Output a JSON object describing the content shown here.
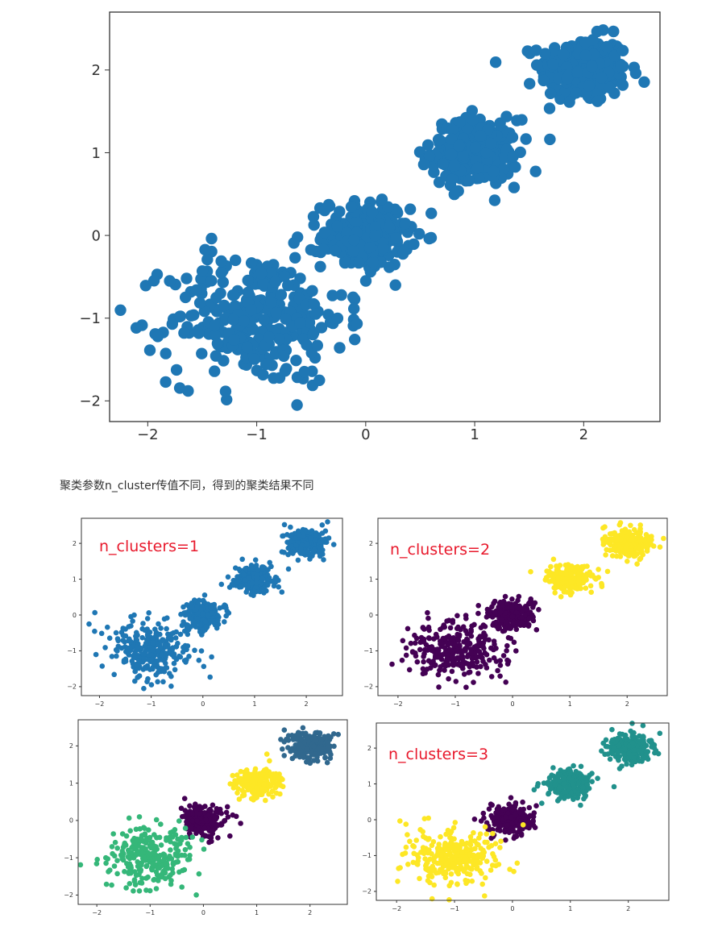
{
  "caption": "聚类参数n_cluster传值不同，得到的聚类结果不同",
  "annotations": [
    "n_clusters=1",
    "n_clusters=2",
    "n_clusters=3"
  ],
  "chart_data": [
    {
      "type": "scatter",
      "title": "",
      "xlabel": "",
      "ylabel": "",
      "xlim": [
        -2.35,
        2.7
      ],
      "ylim": [
        -2.25,
        2.7
      ],
      "xticks": [
        -2,
        -1,
        0,
        1,
        2
      ],
      "yticks": [
        -2,
        -1,
        0,
        1,
        2
      ],
      "grid": false,
      "clusters": [
        {
          "center": [
            2.0,
            2.0
          ],
          "spread": 0.2,
          "count": 260,
          "color": "#1f77b4"
        },
        {
          "center": [
            1.0,
            1.0
          ],
          "spread": 0.2,
          "count": 240,
          "color": "#1f77b4"
        },
        {
          "center": [
            0.0,
            0.0
          ],
          "spread": 0.2,
          "count": 240,
          "color": "#1f77b4"
        },
        {
          "center": [
            -1.0,
            -1.0
          ],
          "spread": 0.4,
          "count": 300,
          "color": "#1f77b4"
        }
      ]
    },
    {
      "type": "scatter",
      "title": "",
      "xlim": [
        -2.35,
        2.7
      ],
      "ylim": [
        -2.25,
        2.7
      ],
      "xticks": [
        -2,
        -1,
        0,
        1,
        2
      ],
      "yticks": [
        -2,
        -1,
        0,
        1,
        2
      ],
      "grid": false,
      "clusters": [
        {
          "center": [
            2.0,
            2.0
          ],
          "spread": 0.2,
          "count": 230,
          "color": "#1f77b4"
        },
        {
          "center": [
            1.0,
            1.0
          ],
          "spread": 0.2,
          "count": 220,
          "color": "#1f77b4"
        },
        {
          "center": [
            0.0,
            0.0
          ],
          "spread": 0.2,
          "count": 220,
          "color": "#1f77b4"
        },
        {
          "center": [
            -1.0,
            -1.0
          ],
          "spread": 0.4,
          "count": 280,
          "color": "#1f77b4"
        }
      ]
    },
    {
      "type": "scatter",
      "title": "",
      "xlim": [
        -2.35,
        2.7
      ],
      "ylim": [
        -2.25,
        2.7
      ],
      "xticks": [
        -2,
        -1,
        0,
        1,
        2
      ],
      "yticks": [
        -2,
        -1,
        0,
        1,
        2
      ],
      "grid": false,
      "clusters": [
        {
          "center": [
            2.0,
            2.0
          ],
          "spread": 0.2,
          "count": 230,
          "color": "#fde725"
        },
        {
          "center": [
            1.0,
            1.0
          ],
          "spread": 0.2,
          "count": 220,
          "color": "#fde725"
        },
        {
          "center": [
            0.0,
            0.0
          ],
          "spread": 0.2,
          "count": 220,
          "color": "#440154"
        },
        {
          "center": [
            -1.0,
            -1.0
          ],
          "spread": 0.4,
          "count": 280,
          "color": "#440154"
        }
      ]
    },
    {
      "type": "scatter",
      "title": "",
      "xlim": [
        -2.35,
        2.7
      ],
      "ylim": [
        -2.25,
        2.7
      ],
      "xticks": [
        -2,
        -1,
        0,
        1,
        2
      ],
      "yticks": [
        -2,
        -1,
        0,
        1,
        2
      ],
      "grid": false,
      "clusters": [
        {
          "center": [
            2.0,
            2.0
          ],
          "spread": 0.2,
          "count": 230,
          "color": "#31688e"
        },
        {
          "center": [
            1.0,
            1.0
          ],
          "spread": 0.2,
          "count": 220,
          "color": "#fde725"
        },
        {
          "center": [
            0.0,
            0.0
          ],
          "spread": 0.2,
          "count": 220,
          "color": "#440154"
        },
        {
          "center": [
            -1.0,
            -1.0
          ],
          "spread": 0.4,
          "count": 280,
          "color": "#35b779"
        }
      ]
    },
    {
      "type": "scatter",
      "title": "",
      "xlim": [
        -2.35,
        2.7
      ],
      "ylim": [
        -2.25,
        2.7
      ],
      "xticks": [
        -2,
        -1,
        0,
        1,
        2
      ],
      "yticks": [
        -2,
        -1,
        0,
        1,
        2
      ],
      "grid": false,
      "clusters": [
        {
          "center": [
            2.0,
            2.0
          ],
          "spread": 0.2,
          "count": 230,
          "color": "#21918c"
        },
        {
          "center": [
            1.0,
            1.0
          ],
          "spread": 0.2,
          "count": 220,
          "color": "#21918c"
        },
        {
          "center": [
            0.0,
            0.0
          ],
          "spread": 0.2,
          "count": 220,
          "color": "#440154"
        },
        {
          "center": [
            -1.0,
            -1.0
          ],
          "spread": 0.4,
          "count": 280,
          "color": "#fde725"
        }
      ]
    }
  ]
}
